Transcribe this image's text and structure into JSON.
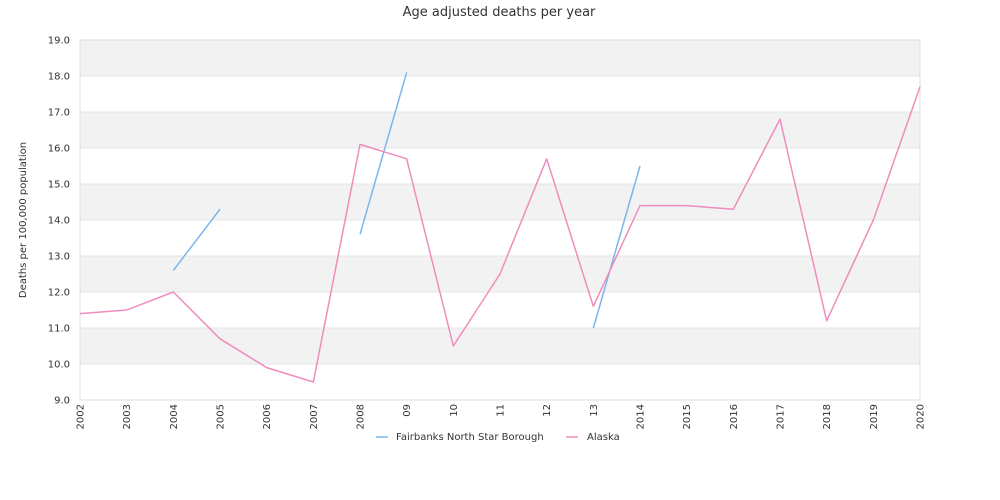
{
  "chart_data": {
    "type": "line",
    "title": "Age adjusted deaths per year",
    "xlabel": "",
    "ylabel": "Deaths per 100,000 population",
    "categories": [
      "2002",
      "2003",
      "2004",
      "2005",
      "2006",
      "2007",
      "2008",
      "09",
      "10",
      "11",
      "12",
      "13",
      "2014",
      "2015",
      "2016",
      "2017",
      "2018",
      "2019",
      "2020"
    ],
    "ylim": [
      9.0,
      19.0
    ],
    "yticks": [
      "9.0",
      "10.0",
      "11.0",
      "12.0",
      "13.0",
      "14.0",
      "15.0",
      "16.0",
      "17.0",
      "18.0",
      "19.0"
    ],
    "grid": "horizontal bands",
    "legend_position": "bottom",
    "series": [
      {
        "name": "Fairbanks North Star Borough",
        "color": "#7cb5ec",
        "values": [
          null,
          null,
          12.6,
          14.3,
          null,
          null,
          13.6,
          18.1,
          null,
          null,
          null,
          11.0,
          15.5,
          null,
          null,
          null,
          null,
          null,
          null
        ]
      },
      {
        "name": "Alaska",
        "color": "#f08cbe",
        "values": [
          11.4,
          11.5,
          12.0,
          10.7,
          9.9,
          9.5,
          16.1,
          15.7,
          10.5,
          12.5,
          15.7,
          11.6,
          14.4,
          14.4,
          14.3,
          16.8,
          11.2,
          14.0,
          17.7
        ]
      }
    ]
  }
}
